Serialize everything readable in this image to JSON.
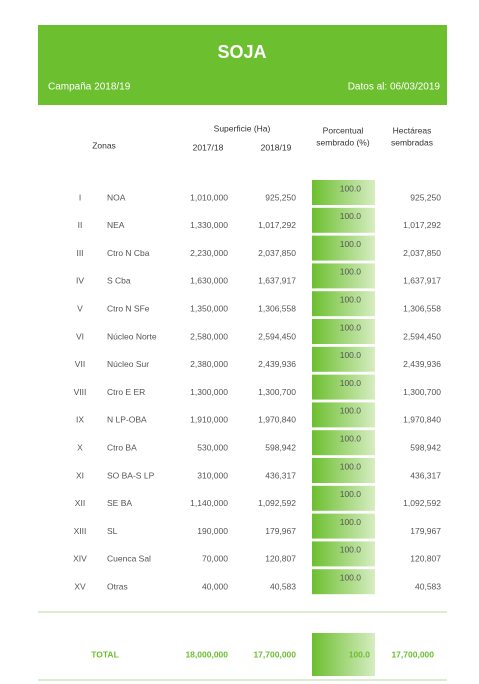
{
  "header": {
    "title": "SOJA",
    "campaign": "Campaña 2018/19",
    "date": "Datos al: 06/03/2019"
  },
  "columns": {
    "zones": "Zonas",
    "surface": "Superficie (Ha)",
    "year1": "2017/18",
    "year2": "2018/19",
    "percent": [
      "Porcentual",
      "sembrado (%)"
    ],
    "hectares": [
      "Hectáreas",
      "sembradas"
    ]
  },
  "table": {
    "rows": [
      [
        "I",
        "NOA",
        "1,010,000",
        "925,250",
        "100.0",
        "925,250"
      ],
      [
        "II",
        "NEA",
        "1,330,000",
        "1,017,292",
        "100.0",
        "1,017,292"
      ],
      [
        "III",
        "Ctro N Cba",
        "2,230,000",
        "2,037,850",
        "100.0",
        "2,037,850"
      ],
      [
        "IV",
        "S Cba",
        "1,630,000",
        "1,637,917",
        "100.0",
        "1,637,917"
      ],
      [
        "V",
        "Ctro N SFe",
        "1,350,000",
        "1,306,558",
        "100.0",
        "1,306,558"
      ],
      [
        "VI",
        "Núcleo Norte",
        "2,580,000",
        "2,594,450",
        "100.0",
        "2,594,450"
      ],
      [
        "VII",
        "Núcleo Sur",
        "2,380,000",
        "2,439,936",
        "100.0",
        "2,439,936"
      ],
      [
        "VIII",
        "Ctro E ER",
        "1,300,000",
        "1,300,700",
        "100.0",
        "1,300,700"
      ],
      [
        "IX",
        "N LP-OBA",
        "1,910,000",
        "1,970,840",
        "100.0",
        "1,970,840"
      ],
      [
        "X",
        "Ctro BA",
        "530,000",
        "598,942",
        "100.0",
        "598,942"
      ],
      [
        "XI",
        "SO BA-S LP",
        "310,000",
        "436,317",
        "100.0",
        "436,317"
      ],
      [
        "XII",
        "SE BA",
        "1,140,000",
        "1,092,592",
        "100.0",
        "1,092,592"
      ],
      [
        "XIII",
        "SL",
        "190,000",
        "179,967",
        "100.0",
        "179,967"
      ],
      [
        "XIV",
        "Cuenca Sal",
        "70,000",
        "120,807",
        "100.0",
        "120,807"
      ],
      [
        "XV",
        "Otras",
        "40,000",
        "40,583",
        "100.0",
        "40,583"
      ]
    ],
    "total": [
      "TOTAL",
      "18,000,000",
      "17,700,000",
      "100.0",
      "17,700,000"
    ]
  }
}
